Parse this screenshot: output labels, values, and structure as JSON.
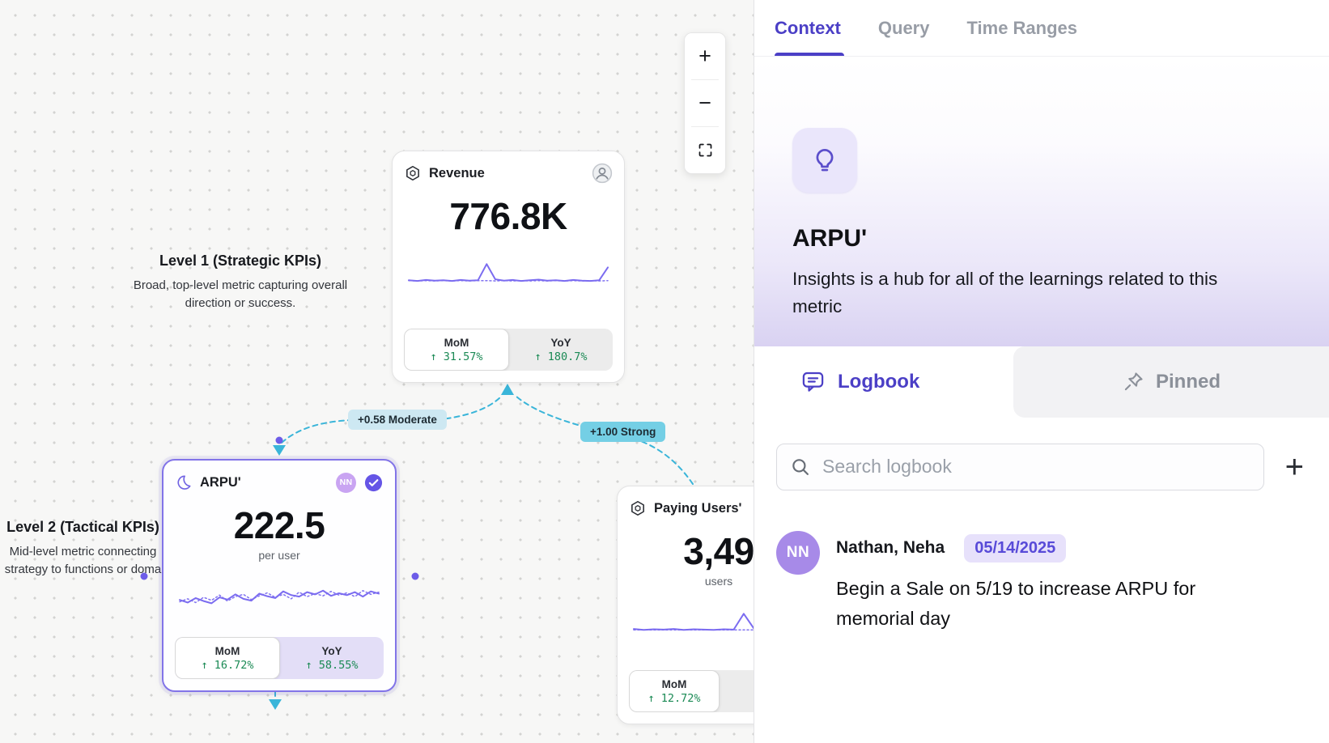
{
  "colors": {
    "accent_purple": "#4b3fc6",
    "edge_teal": "#3ab5d9",
    "positive_green": "#1b8a55",
    "spark_purple": "#7b6cf0"
  },
  "canvas": {
    "zoom_toolbar": {
      "zoom_in_label": "+",
      "zoom_out_label": "−"
    },
    "annotations": {
      "level1": {
        "title": "Level 1 (Strategic KPIs)",
        "description": "Broad, top-level metric capturing overall direction or success."
      },
      "level2": {
        "title": "Level 2 (Tactical KPIs)",
        "description": "Mid-level metric connecting strategy to functions or doma"
      }
    },
    "edges": {
      "moderate": {
        "label": "+0.58 Moderate"
      },
      "strong": {
        "label": "+1.00 Strong"
      }
    },
    "cards": {
      "revenue": {
        "title": "Revenue",
        "value": "776.8K",
        "stats": {
          "mom_label": "MoM",
          "mom_value": "↑ 31.57%",
          "yoy_label": "YoY",
          "yoy_value": "↑ 180.7%"
        },
        "spark": [
          13,
          11,
          14,
          12,
          13,
          11,
          14,
          12,
          13,
          62,
          16,
          12,
          14,
          11,
          13,
          15,
          12,
          13,
          11,
          14,
          12,
          11,
          13,
          52
        ],
        "spark_dotted": [
          12,
          11,
          12,
          11,
          12,
          11,
          12,
          11,
          12,
          12,
          11,
          12,
          11,
          12,
          11,
          12,
          11,
          12,
          11,
          12,
          11,
          12,
          11,
          12
        ]
      },
      "arpu": {
        "title": "ARPU'",
        "value": "222.5",
        "unit": "per user",
        "avatar_initials": "NN",
        "stats": {
          "mom_label": "MoM",
          "mom_value": "↑ 16.72%",
          "yoy_label": "YoY",
          "yoy_value": "↑ 58.55%"
        },
        "spark": [
          35,
          28,
          40,
          32,
          26,
          42,
          36,
          50,
          38,
          33,
          52,
          45,
          40,
          58,
          48,
          44,
          56,
          50,
          60,
          46,
          53,
          48,
          56,
          44,
          58,
          52
        ],
        "spark_dotted": [
          30,
          38,
          28,
          42,
          34,
          48,
          32,
          44,
          50,
          36,
          46,
          54,
          42,
          50,
          38,
          56,
          44,
          52,
          46,
          58,
          48,
          54,
          44,
          60,
          50,
          56
        ]
      },
      "paying_users": {
        "title": "Paying Users'",
        "value": "3,49",
        "unit": "users",
        "stats": {
          "mom_label": "MoM",
          "mom_value": "↑ 12.72%"
        },
        "spark": [
          16,
          13,
          15,
          14,
          16,
          13,
          15,
          14,
          13,
          15,
          14,
          62,
          18,
          14,
          15,
          13,
          15,
          14
        ],
        "spark_dotted": [
          13,
          13,
          13,
          13,
          13,
          13,
          13,
          13,
          13,
          13,
          13,
          13,
          13,
          13,
          13,
          13,
          13,
          13
        ]
      }
    }
  },
  "panel": {
    "tabs": [
      {
        "label": "Context"
      },
      {
        "label": "Query"
      },
      {
        "label": "Time Ranges"
      }
    ],
    "hero": {
      "title": "ARPU'",
      "description": "Insights is a hub for all of the learnings related to this metric"
    },
    "subtabs": {
      "logbook": "Logbook",
      "pinned": "Pinned"
    },
    "search_placeholder": "Search logbook",
    "add_button": "+",
    "entries": [
      {
        "avatar_initials": "NN",
        "author": "Nathan, Neha",
        "date": "05/14/2025",
        "text": "Begin a Sale on 5/19 to increase ARPU for memorial day"
      }
    ]
  }
}
